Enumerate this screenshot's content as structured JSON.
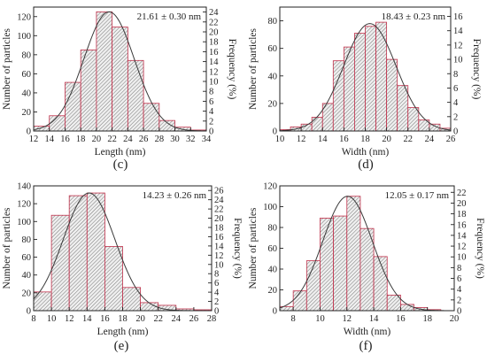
{
  "chart_data": [
    {
      "type": "bar",
      "panel_label": "(c)",
      "annotation": "21.61 ± 0.30 nm",
      "xlabel": "Length (nm)",
      "ylabel": "Number of particles",
      "y2label": "Frequency (%)",
      "xlim": [
        12,
        34
      ],
      "ylim": [
        0,
        130
      ],
      "y2lim": [
        0,
        25
      ],
      "xticks": [
        12,
        14,
        16,
        18,
        20,
        22,
        24,
        26,
        28,
        30,
        32,
        34
      ],
      "yticks": [
        0,
        20,
        40,
        60,
        80,
        100,
        120
      ],
      "y2ticks": [
        0,
        2,
        4,
        6,
        8,
        10,
        12,
        14,
        16,
        18,
        20,
        22,
        24
      ],
      "bin_width": 2,
      "bin_starts": [
        12,
        14,
        16,
        18,
        20,
        22,
        24,
        26,
        28,
        30,
        32
      ],
      "values": [
        5,
        16,
        51,
        85,
        125,
        109,
        74,
        29,
        11,
        4,
        1
      ],
      "fit": {
        "type": "gaussian",
        "mean": 21.61,
        "peak": 125,
        "sigma": 3.2
      }
    },
    {
      "type": "bar",
      "panel_label": "(d)",
      "annotation": "18.43 ± 0.23 nm",
      "xlabel": "Width (nm)",
      "ylabel": "Number of particles",
      "y2label": "Frequency (%)",
      "xlim": [
        10,
        26
      ],
      "ylim": [
        0,
        90
      ],
      "y2lim": [
        0,
        17.3
      ],
      "xticks": [
        10,
        12,
        14,
        16,
        18,
        20,
        22,
        24,
        26
      ],
      "yticks": [
        0,
        20,
        40,
        60,
        80
      ],
      "y2ticks": [
        0,
        2,
        4,
        6,
        8,
        10,
        12,
        14,
        16
      ],
      "bin_width": 1,
      "bin_starts": [
        10,
        11,
        12,
        13,
        14,
        15,
        16,
        17,
        18,
        19,
        20,
        21,
        22,
        23,
        24,
        25
      ],
      "values": [
        1,
        3,
        5,
        10,
        20,
        51,
        61,
        71,
        76,
        79,
        52,
        33,
        17,
        8,
        5,
        2
      ],
      "fit": {
        "type": "gaussian",
        "mean": 18.43,
        "peak": 78,
        "sigma": 2.45
      }
    },
    {
      "type": "bar",
      "panel_label": "(e)",
      "annotation": "14.23 ± 0.26 nm",
      "xlabel": "Length (nm)",
      "ylabel": "Number of particles",
      "y2label": "Frequency (%)",
      "xlim": [
        8,
        28
      ],
      "ylim": [
        0,
        140
      ],
      "y2lim": [
        0,
        27
      ],
      "xticks": [
        8,
        10,
        12,
        14,
        16,
        18,
        20,
        22,
        24,
        26,
        28
      ],
      "yticks": [
        0,
        20,
        40,
        60,
        80,
        100,
        120,
        140
      ],
      "y2ticks": [
        0,
        2,
        4,
        6,
        8,
        10,
        12,
        14,
        16,
        18,
        20,
        22,
        24,
        26
      ],
      "bin_width": 2,
      "bin_starts": [
        8,
        10,
        12,
        14,
        16,
        18,
        20,
        22,
        24,
        26
      ],
      "values": [
        21,
        107,
        129,
        132,
        72,
        26,
        9,
        6,
        2,
        1
      ],
      "fit": {
        "type": "gaussian",
        "mean": 14.23,
        "peak": 132,
        "sigma": 2.9
      }
    },
    {
      "type": "bar",
      "panel_label": "(f)",
      "annotation": "12.05 ± 0.17 nm",
      "xlabel": "Width (nm)",
      "ylabel": "Number of particles",
      "y2label": "Frequency (%)",
      "xlim": [
        7,
        20
      ],
      "ylim": [
        0,
        120
      ],
      "y2lim": [
        0,
        23.2
      ],
      "xticks": [
        8,
        10,
        12,
        14,
        16,
        18,
        20
      ],
      "yticks": [
        0,
        20,
        40,
        60,
        80,
        100,
        120
      ],
      "y2ticks": [
        0,
        2,
        4,
        6,
        8,
        10,
        12,
        14,
        16,
        18,
        20,
        22
      ],
      "bin_width": 1,
      "bin_starts": [
        7,
        8,
        9,
        10,
        11,
        12,
        13,
        14,
        15,
        16,
        17,
        18,
        19
      ],
      "values": [
        4,
        19,
        48,
        89,
        91,
        110,
        79,
        52,
        15,
        6,
        3,
        1,
        0
      ],
      "fit": {
        "type": "gaussian",
        "mean": 12.05,
        "peak": 110,
        "sigma": 1.85
      }
    }
  ]
}
